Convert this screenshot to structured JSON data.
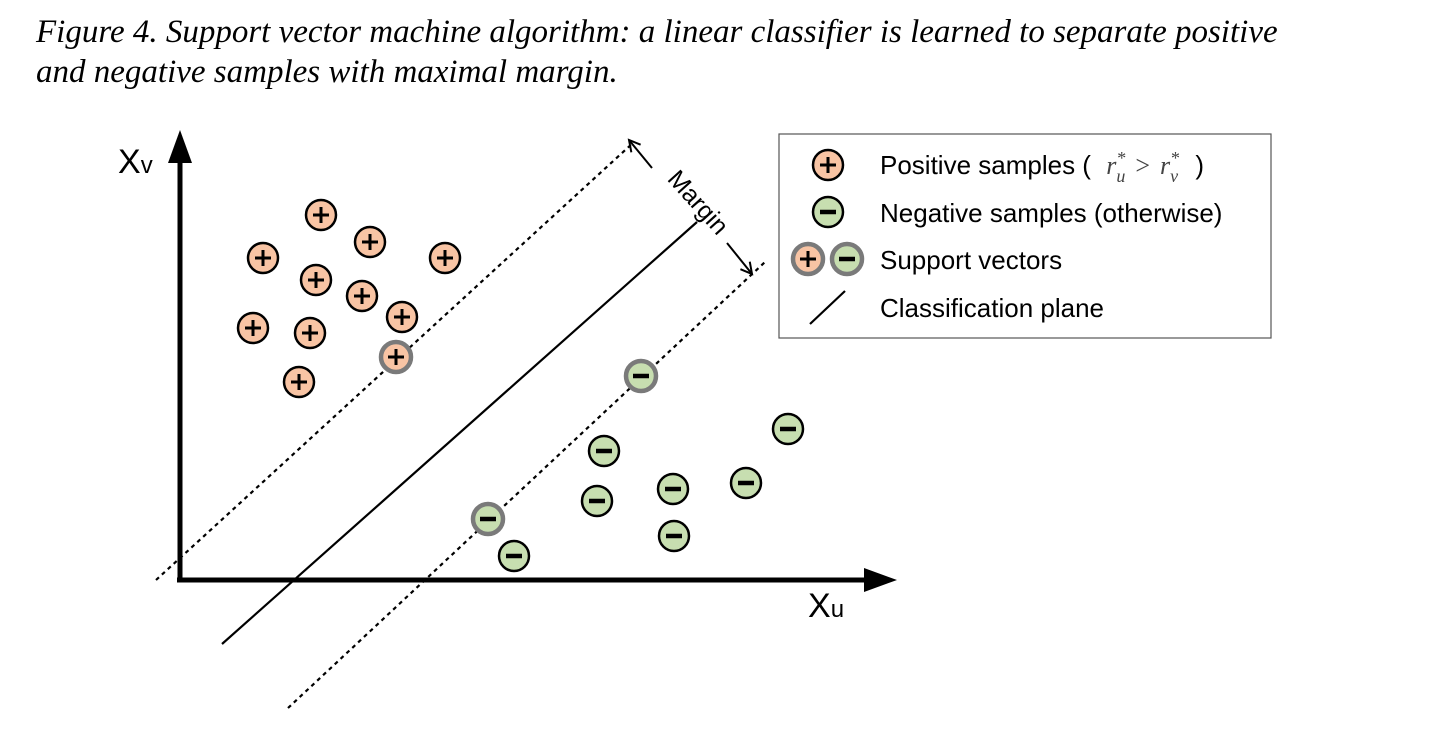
{
  "caption": {
    "line1": "Figure 4. Support vector machine algorithm: a linear classifier is learned to separate positive",
    "line2": "and negative samples with maximal margin."
  },
  "axes": {
    "x_label_main": "X",
    "x_label_sub": "u",
    "y_label_main": "X",
    "y_label_sub": "v"
  },
  "margin_label": "Margin",
  "legend": {
    "positive_prefix": "Positive samples (",
    "positive_math_r1": "r",
    "positive_math_sub1": "u",
    "positive_math_op": ">",
    "positive_math_r2": "r",
    "positive_math_sub2": "v",
    "positive_math_star": "*",
    "positive_suffix": ")",
    "negative": "Negative samples (otherwise)",
    "support": "Support vectors",
    "plane": "Classification plane"
  },
  "colors": {
    "positive_fill": "#f8c4a4",
    "negative_fill": "#c7deb0",
    "support_border": "#7a7a7a",
    "ink": "#000000"
  },
  "icons": {
    "positive": "plus-circle-icon",
    "negative": "minus-circle-icon"
  }
}
